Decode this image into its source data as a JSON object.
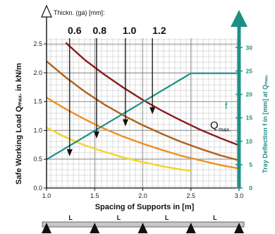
{
  "chart_data": {
    "type": "line",
    "title": "",
    "xlabel": "Spacing of Supports in [m]",
    "ylabel": "Safe Working Load Qₘₐₓ. in kN/m",
    "y2label": "Tray Deflection f in [mm] at Qₘₐₓ.",
    "xlim": [
      1.0,
      3.0
    ],
    "ylim": [
      0.0,
      2.6
    ],
    "y2lim": [
      0,
      32
    ],
    "xticks": [
      "1.0",
      "1.5",
      "2.0",
      "2.5",
      "3.0"
    ],
    "yticks": [
      "0.0",
      "0.5",
      "1.0",
      "1.5",
      "2.0",
      "2.5"
    ],
    "y2ticks": [
      "0",
      "5",
      "10",
      "15",
      "20",
      "25",
      "30"
    ],
    "thickness_title": "Thickn. (ga) [mm]:",
    "thickness_labels": [
      {
        "text": "0.6",
        "x": 1.22
      },
      {
        "text": "0.8",
        "x": 1.48
      },
      {
        "text": "1.0",
        "x": 1.79
      },
      {
        "text": "1.2",
        "x": 2.1
      }
    ],
    "load_label": "Q",
    "load_label_sub": "max.",
    "deflection_label": "f",
    "grid": true,
    "series": [
      {
        "thickness": "1.2",
        "color": "#8b1a1a",
        "x": [
          1.2,
          1.4,
          1.6,
          1.8,
          2.0,
          2.2,
          2.4,
          2.6,
          2.8,
          3.0
        ],
        "values": [
          2.52,
          2.22,
          1.97,
          1.74,
          1.53,
          1.34,
          1.17,
          1.01,
          0.87,
          0.74
        ]
      },
      {
        "thickness": "1.0",
        "color": "#b0601a",
        "x": [
          1.0,
          1.2,
          1.4,
          1.6,
          1.8,
          2.0,
          2.2,
          2.4,
          2.6,
          2.8,
          3.0
        ],
        "values": [
          2.2,
          1.92,
          1.67,
          1.45,
          1.26,
          1.09,
          0.94,
          0.8,
          0.68,
          0.57,
          0.48
        ]
      },
      {
        "thickness": "0.8",
        "color": "#ef8f1e",
        "x": [
          1.0,
          1.2,
          1.4,
          1.6,
          1.8,
          2.0,
          2.2,
          2.4,
          2.6,
          2.8,
          3.0
        ],
        "values": [
          1.57,
          1.37,
          1.19,
          1.03,
          0.89,
          0.77,
          0.66,
          0.56,
          0.48,
          0.4,
          0.34
        ]
      },
      {
        "thickness": "0.6",
        "color": "#f2d626",
        "x": [
          1.0,
          1.2,
          1.4,
          1.6,
          1.8,
          2.0,
          2.2,
          2.4,
          2.5
        ],
        "values": [
          1.05,
          0.88,
          0.74,
          0.63,
          0.53,
          0.45,
          0.38,
          0.32,
          0.3
        ]
      },
      {
        "name": "f",
        "axis": "right",
        "color": "#1f8f86",
        "x": [
          1.0,
          2.5,
          3.0
        ],
        "values": [
          6.1,
          24.5,
          24.5
        ]
      }
    ],
    "arrows": [
      {
        "x": 1.24,
        "y_from": 2.6,
        "y_to": 0.55
      },
      {
        "x": 1.52,
        "y_from": 2.6,
        "y_to": 0.86
      },
      {
        "x": 1.82,
        "y_from": 2.6,
        "y_to": 1.07
      },
      {
        "x": 2.1,
        "y_from": 2.6,
        "y_to": 1.28
      }
    ],
    "support_markers": [
      "L",
      "L",
      "L",
      "L"
    ]
  }
}
